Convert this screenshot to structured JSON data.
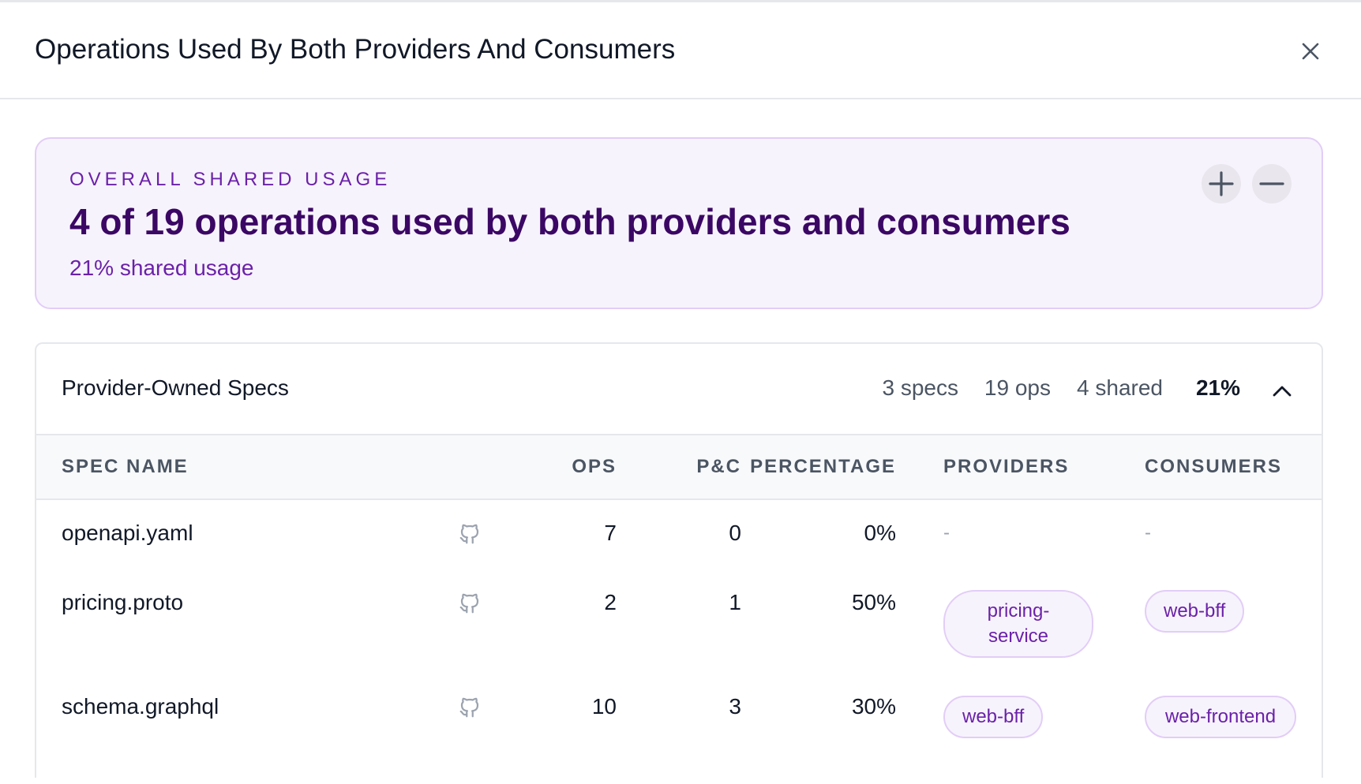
{
  "header": {
    "title": "Operations Used By Both Providers And Consumers"
  },
  "summary": {
    "label": "OVERALL SHARED USAGE",
    "headline": "4 of 19 operations used by both providers and consumers",
    "subline": "21% shared usage",
    "shared_percent": 21
  },
  "section": {
    "title": "Provider-Owned Specs",
    "stats": {
      "specs": "3 specs",
      "ops": "19 ops",
      "shared": "4 shared",
      "percent": "21%"
    }
  },
  "table": {
    "columns": {
      "spec_name": "SPEC NAME",
      "ops": "OPS",
      "pc": "P&C",
      "percentage": "PERCENTAGE",
      "providers": "PROVIDERS",
      "consumers": "CONSUMERS"
    },
    "rows": [
      {
        "name": "openapi.yaml",
        "ops": "7",
        "pc": "0",
        "percentage": "0%",
        "providers": "-",
        "consumers": "-"
      },
      {
        "name": "pricing.proto",
        "ops": "2",
        "pc": "1",
        "percentage": "50%",
        "providers": [
          "pricing-service"
        ],
        "consumers": [
          "web-bff"
        ]
      },
      {
        "name": "schema.graphql",
        "ops": "10",
        "pc": "3",
        "percentage": "30%",
        "providers": [
          "web-bff"
        ],
        "consumers": [
          "web-frontend"
        ]
      }
    ]
  },
  "icons": {
    "close": "close-icon",
    "zoom_in": "plus-icon",
    "zoom_out": "minus-icon",
    "collapse": "chevron-up-icon",
    "repo": "github-icon"
  },
  "colors": {
    "accent": "#6b21a8",
    "accent_dark": "#3b0764",
    "summary_bg": "#f7f3fd",
    "summary_border": "#e2cdf7"
  }
}
